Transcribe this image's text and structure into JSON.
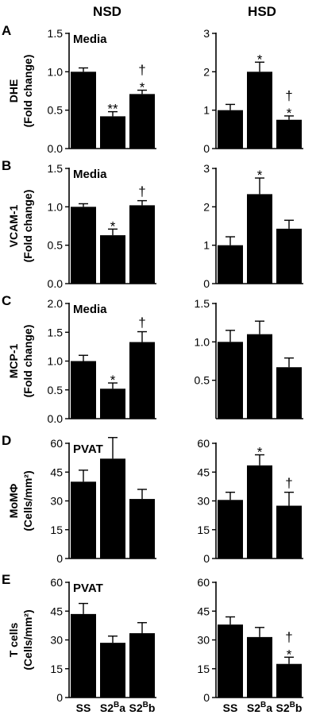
{
  "column_headers": [
    "NSD",
    "HSD"
  ],
  "rows": [
    {
      "letter": "A",
      "ylabel_line1": "DHE",
      "ylabel_line2": "(Fold change)",
      "inset_label": "Media"
    },
    {
      "letter": "B",
      "ylabel_line1": "VCAM-1",
      "ylabel_line2": "(Fold change)",
      "inset_label": "Media"
    },
    {
      "letter": "C",
      "ylabel_line1": "MCP-1",
      "ylabel_line2": "(Fold change)",
      "inset_label": "Media"
    },
    {
      "letter": "D",
      "ylabel_line1": "MoMΦ",
      "ylabel_line2": "(Cells/mm²)",
      "inset_label": "PVAT"
    },
    {
      "letter": "E",
      "ylabel_line1": "T cells",
      "ylabel_line2": "(Cells/mm²)",
      "inset_label": "PVAT"
    }
  ],
  "categories": [
    {
      "base": "SS",
      "sup": "",
      "tail": ""
    },
    {
      "base": "S2",
      "sup": "B",
      "tail": "a"
    },
    {
      "base": "S2",
      "sup": "B",
      "tail": "b"
    }
  ],
  "chart_data": [
    {
      "type": "bar",
      "row": "A",
      "column": "NSD",
      "ylim": [
        0,
        1.5
      ],
      "yticks": [
        "0.0",
        "0.5",
        "1.0",
        "1.5"
      ],
      "values": [
        1.0,
        0.42,
        0.71
      ],
      "errors": [
        0.05,
        0.06,
        0.05
      ],
      "annotations": [
        [],
        [
          "**"
        ],
        [
          "†",
          "*"
        ]
      ]
    },
    {
      "type": "bar",
      "row": "A",
      "column": "HSD",
      "ylim": [
        0,
        3
      ],
      "yticks": [
        "0",
        "1",
        "2",
        "3"
      ],
      "values": [
        1.0,
        2.0,
        0.75
      ],
      "errors": [
        0.15,
        0.25,
        0.1
      ],
      "annotations": [
        [],
        [
          "*"
        ],
        [
          "†",
          "*"
        ]
      ]
    },
    {
      "type": "bar",
      "row": "B",
      "column": "NSD",
      "ylim": [
        0,
        1.5
      ],
      "yticks": [
        "0.0",
        "0.5",
        "1.0",
        "1.5"
      ],
      "values": [
        1.0,
        0.63,
        1.02
      ],
      "errors": [
        0.04,
        0.08,
        0.06
      ],
      "annotations": [
        [],
        [
          "*"
        ],
        [
          "†"
        ]
      ]
    },
    {
      "type": "bar",
      "row": "B",
      "column": "HSD",
      "ylim": [
        0,
        3
      ],
      "yticks": [
        "0",
        "1",
        "2",
        "3"
      ],
      "values": [
        1.0,
        2.33,
        1.43
      ],
      "errors": [
        0.22,
        0.42,
        0.22
      ],
      "annotations": [
        [],
        [
          "*"
        ],
        []
      ]
    },
    {
      "type": "bar",
      "row": "C",
      "column": "NSD",
      "ylim": [
        0,
        2.0
      ],
      "yticks": [
        "0.0",
        "0.5",
        "1.0",
        "1.5",
        "2.0"
      ],
      "values": [
        1.0,
        0.52,
        1.33
      ],
      "errors": [
        0.1,
        0.1,
        0.18
      ],
      "annotations": [
        [],
        [
          "*"
        ],
        [
          "†"
        ]
      ]
    },
    {
      "type": "bar",
      "row": "C",
      "column": "HSD",
      "ylim": [
        0,
        1.5
      ],
      "yticks": [
        "0.5",
        "1.0",
        "1.5"
      ],
      "values": [
        1.0,
        1.1,
        0.67
      ],
      "errors": [
        0.15,
        0.17,
        0.12
      ],
      "annotations": [
        [],
        [],
        []
      ]
    },
    {
      "type": "bar",
      "row": "D",
      "column": "NSD",
      "ylim": [
        0,
        60
      ],
      "yticks": [
        "0",
        "15",
        "30",
        "45",
        "60"
      ],
      "values": [
        40,
        52,
        31
      ],
      "errors": [
        6,
        11,
        5
      ],
      "annotations": [
        [],
        [],
        []
      ]
    },
    {
      "type": "bar",
      "row": "D",
      "column": "HSD",
      "ylim": [
        0,
        60
      ],
      "yticks": [
        "0",
        "15",
        "30",
        "45",
        "60"
      ],
      "values": [
        30.5,
        48.5,
        27.5
      ],
      "errors": [
        4,
        5.5,
        7
      ],
      "annotations": [
        [],
        [
          "*"
        ],
        [
          "†"
        ]
      ]
    },
    {
      "type": "bar",
      "row": "E",
      "column": "NSD",
      "ylim": [
        0,
        60
      ],
      "yticks": [
        "0",
        "15",
        "30",
        "45",
        "60"
      ],
      "values": [
        43.5,
        28.5,
        33.5
      ],
      "errors": [
        5.5,
        3.5,
        5.5
      ],
      "annotations": [
        [],
        [],
        []
      ]
    },
    {
      "type": "bar",
      "row": "E",
      "column": "HSD",
      "ylim": [
        0,
        60
      ],
      "yticks": [
        "0",
        "15",
        "30",
        "45",
        "60"
      ],
      "values": [
        38,
        31.5,
        17.5
      ],
      "errors": [
        4,
        5,
        3.5
      ],
      "annotations": [
        [],
        [],
        [
          "†",
          "*"
        ]
      ]
    }
  ]
}
